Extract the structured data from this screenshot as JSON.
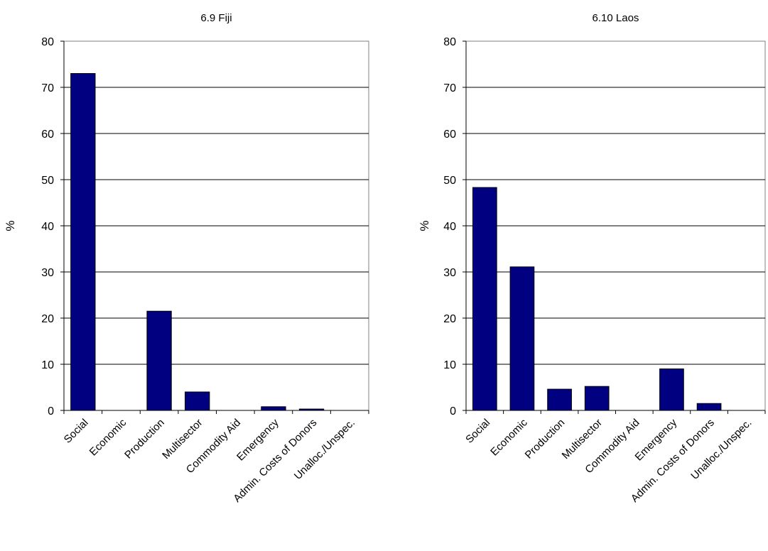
{
  "chart_data": [
    {
      "type": "bar",
      "title": "6.9 Fiji",
      "ylabel": "%",
      "xlabel": "",
      "ylim": [
        0,
        80
      ],
      "yticks": [
        0,
        10,
        20,
        30,
        40,
        50,
        60,
        70,
        80
      ],
      "grid": true,
      "bar_color": "#000080",
      "categories": [
        "Social",
        "Economic",
        "Production",
        "Multisector",
        "Commodity Aid",
        "Emergency",
        "Admin. Costs of Donors",
        "Unalloc./Unspec."
      ],
      "values": [
        73,
        0,
        21.5,
        4,
        0,
        0.8,
        0.3,
        0
      ]
    },
    {
      "type": "bar",
      "title": "6.10 Laos",
      "ylabel": "%",
      "xlabel": "",
      "ylim": [
        0,
        80
      ],
      "yticks": [
        0,
        10,
        20,
        30,
        40,
        50,
        60,
        70,
        80
      ],
      "grid": true,
      "bar_color": "#000080",
      "categories": [
        "Social",
        "Economic",
        "Production",
        "Multisector",
        "Commodity Aid",
        "Emergency",
        "Admin. Costs of Donors",
        "Unalloc./Unspec."
      ],
      "values": [
        48.3,
        31.1,
        4.6,
        5.2,
        0,
        9,
        1.5,
        0
      ]
    }
  ]
}
